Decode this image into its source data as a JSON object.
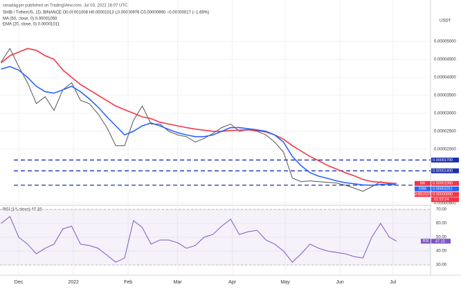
{
  "chart_data": {
    "type": "line",
    "publisher": "ranadagger published on TradingView.com, Jul 03, 2022 16:07 UTC",
    "title": "SHIB / TetherUS, 1D, BINANCE O0.00001008 H0.00001013 L0.00000976 C0.00000990 −0.00000017 (−1.69%)",
    "legend_lines": [
      "MA (50, close, 0) 0.00001050",
      "EMA (20, close, 0) 0.00001011"
    ],
    "currency": "USDT",
    "x": [
      -10,
      -5,
      0,
      5,
      10,
      15,
      20,
      25,
      30,
      35,
      40,
      45,
      50,
      55,
      60,
      65,
      70,
      75,
      80,
      85,
      90,
      95,
      100,
      105,
      110,
      115,
      120,
      125,
      130,
      135,
      140,
      145,
      150,
      155,
      160,
      165,
      170,
      175,
      180,
      185,
      190,
      195,
      200,
      205,
      210,
      214
    ],
    "xlim": [
      -10.6,
      233.3
    ],
    "xticks": [
      {
        "value": 0,
        "label": "Dec"
      },
      {
        "value": 31,
        "label": "2022"
      },
      {
        "value": 62,
        "label": "Feb"
      },
      {
        "value": 90,
        "label": "Mar"
      },
      {
        "value": 121,
        "label": "Apr"
      },
      {
        "value": 151,
        "label": "May"
      },
      {
        "value": 182,
        "label": "Jun"
      },
      {
        "value": 212,
        "label": "Jul"
      }
    ],
    "ylim": [
      4.4e-06,
      6.15e-05
    ],
    "yticks": [
      {
        "value": 5e-06,
        "label": "0.00000500"
      },
      {
        "value": 2e-05,
        "label": "0.00002000"
      },
      {
        "value": 2.5e-05,
        "label": "0.00002500"
      },
      {
        "value": 3e-05,
        "label": "0.00003000"
      },
      {
        "value": 3.5e-05,
        "label": "0.00003500"
      },
      {
        "value": 4e-05,
        "label": "0.00004000"
      },
      {
        "value": 4.5e-05,
        "label": "0.00004500"
      },
      {
        "value": 5e-05,
        "label": "0.00005000"
      }
    ],
    "grid": true,
    "series": [
      {
        "name": "SHIBUSDT",
        "color": "#555555",
        "values": [
          4.42e-05,
          4.8e-05,
          4.3e-05,
          3.85e-05,
          3.27e-05,
          3.46e-05,
          3.08e-05,
          3.65e-05,
          3.85e-05,
          3.36e-05,
          3.27e-05,
          2.98e-05,
          2.6e-05,
          2.1e-05,
          2.1e-05,
          2.8e-05,
          3.2e-05,
          2.7e-05,
          2.7e-05,
          2.5e-05,
          2.4e-05,
          2.35e-05,
          2.2e-05,
          2.3e-05,
          2.44e-05,
          2.6e-05,
          2.7e-05,
          2.5e-05,
          2.54e-05,
          2.5e-05,
          2.4e-05,
          2.2e-05,
          1.92e-05,
          1.2e-05,
          1.1e-05,
          1.12e-05,
          1.1e-05,
          1.08e-05,
          1.06e-05,
          1e-05,
          9.2e-06,
          8.3e-06,
          9.6e-06,
          1.1e-05,
          1.04e-05,
          9.9e-06
        ]
      },
      {
        "name": "MA",
        "color": "#f23645",
        "values": [
          4.4e-05,
          4.6e-05,
          4.7e-05,
          4.8e-05,
          4.75e-05,
          4.6e-05,
          4.5e-05,
          4.2e-05,
          4e-05,
          3.8e-05,
          3.65e-05,
          3.5e-05,
          3.35e-05,
          3.2e-05,
          3.1e-05,
          3e-05,
          2.9e-05,
          2.85e-05,
          2.75e-05,
          2.7e-05,
          2.65e-05,
          2.6e-05,
          2.56e-05,
          2.53e-05,
          2.5e-05,
          2.5e-05,
          2.52e-05,
          2.53e-05,
          2.54e-05,
          2.52e-05,
          2.48e-05,
          2.4e-05,
          2.28e-05,
          2.1e-05,
          1.95e-05,
          1.8e-05,
          1.68e-05,
          1.55e-05,
          1.45e-05,
          1.35e-05,
          1.26e-05,
          1.16e-05,
          1.1e-05,
          1.08e-05,
          1.06e-05,
          1.05e-05
        ]
      },
      {
        "name": "EMA",
        "color": "#2962ff",
        "values": [
          4.23e-05,
          4.3e-05,
          4.2e-05,
          4e-05,
          3.75e-05,
          3.6e-05,
          3.56e-05,
          3.65e-05,
          3.75e-05,
          3.6e-05,
          3.4e-05,
          3.17e-05,
          2.9e-05,
          2.65e-05,
          2.4e-05,
          2.5e-05,
          2.65e-05,
          2.73e-05,
          2.65e-05,
          2.55e-05,
          2.46e-05,
          2.4e-05,
          2.35e-05,
          2.35e-05,
          2.4e-05,
          2.5e-05,
          2.6e-05,
          2.6e-05,
          2.57e-05,
          2.54e-05,
          2.5e-05,
          2.4e-05,
          2.2e-05,
          1.8e-05,
          1.54e-05,
          1.35e-05,
          1.25e-05,
          1.19e-05,
          1.12e-05,
          1.07e-05,
          1.04e-05,
          1.01e-05,
          1e-05,
          1.02e-05,
          1.03e-05,
          1.011e-05
        ]
      }
    ],
    "levels": [
      1.7e-05,
      1.4e-05,
      1e-05
    ],
    "level_color": "#1c2fb0",
    "price_tags": [
      {
        "label": "0.00001700",
        "value": 1.7e-05,
        "color": "#1c2fb0"
      },
      {
        "label": "0.00001400",
        "value": 1.4e-05,
        "color": "#1c2fb0"
      },
      {
        "name": "MA",
        "label": "0.00001050",
        "value": 1.05e-05,
        "color": "#f23645"
      },
      {
        "name": "EMA",
        "label": "0.00001011",
        "value": 1.011e-05,
        "color": "#2962ff"
      },
      {
        "name": "SHIBUSDT",
        "label": "0.00000990",
        "value": 9.9e-06,
        "color": "#f23645"
      }
    ],
    "countdown": "01:52:24",
    "rsi": {
      "title": "RSI (14, close) 47.15",
      "color": "#7e57c2",
      "label": "RSI",
      "last_label": "47.15",
      "values": [
        60,
        65,
        50,
        45,
        38,
        42,
        45,
        56,
        58,
        45,
        44,
        42,
        37,
        32,
        35,
        62,
        57,
        45,
        48,
        48,
        46,
        42,
        44,
        50,
        52,
        58,
        63,
        52,
        54,
        55,
        48,
        45,
        40,
        32,
        38,
        45,
        42,
        40,
        39,
        38,
        36,
        35,
        50,
        60,
        50,
        47.15
      ],
      "ylim": [
        22.6,
        73
      ],
      "yticks": [
        {
          "value": 30,
          "label": "30.00"
        },
        {
          "value": 40,
          "label": "40.00"
        },
        {
          "value": 50,
          "label": "50.00"
        },
        {
          "value": 60,
          "label": "60.00"
        },
        {
          "value": 70,
          "label": "70.00"
        }
      ],
      "bands": [
        70,
        30
      ]
    }
  }
}
